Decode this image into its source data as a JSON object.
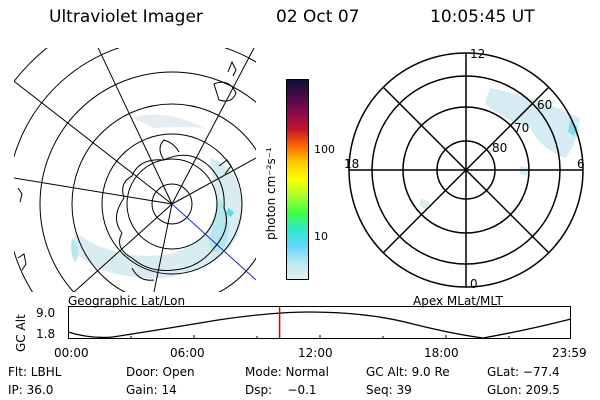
{
  "header": {
    "title": "Ultraviolet Imager",
    "date": "02 Oct 07",
    "time": "10:05:45 UT"
  },
  "geo_panel": {
    "label": "Geographic Lat/Lon"
  },
  "apex_panel": {
    "label": "Apex MLat/MLT",
    "mlt_labels": [
      "12",
      "18",
      "6",
      "0"
    ],
    "lat_labels": [
      "60",
      "70",
      "80"
    ]
  },
  "colorbar": {
    "unit_label": "photon cm⁻²s⁻¹",
    "tick_labels": [
      "100",
      "10"
    ],
    "colors": [
      "#111133",
      "#4a0a4a",
      "#8a0a4a",
      "#c8142a",
      "#ff6a00",
      "#ffcc00",
      "#ffff00",
      "#a8ff30",
      "#40ff40",
      "#30e8c8",
      "#60d8ff",
      "#b8e8f0",
      "#e8f0f4"
    ]
  },
  "altitude_plot": {
    "ylabel": "GC Alt",
    "yticks": [
      "9.0",
      "1.8"
    ],
    "xticks": [
      "00:00",
      "06:00",
      "12:00",
      "18:00",
      "23:59"
    ],
    "current_time_fraction": 0.4207
  },
  "info": {
    "flt": "Flt: LBHL",
    "door": "Door: Open",
    "mode": "Mode: Normal",
    "gc_alt": "GC Alt: 9.0 Re",
    "glat": "GLat: −77.4",
    "ip": "IP: 36.0",
    "gain": "Gain: 14",
    "dsp": "Dsp:    −0.1",
    "seq": "Seq: 39",
    "glon": "GLon: 209.5"
  }
}
